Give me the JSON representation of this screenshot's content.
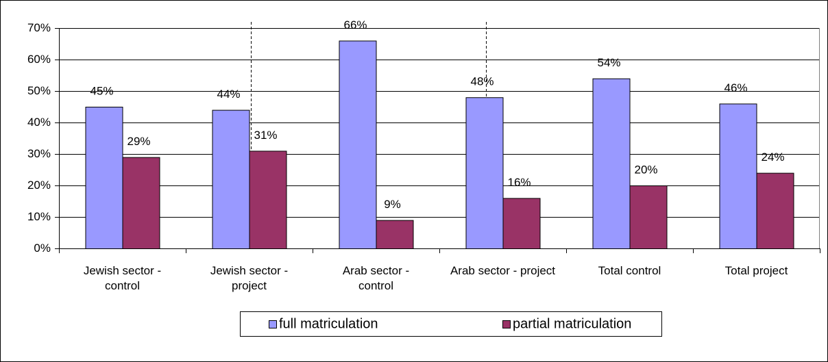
{
  "chart_data": {
    "type": "bar",
    "categories": [
      "Jewish sector - control",
      "Jewish sector - project",
      "Arab sector - control",
      "Arab sector - project",
      "Total control",
      "Total project"
    ],
    "series": [
      {
        "name": "full matriculation",
        "color": "#9999ff",
        "values": [
          45,
          44,
          66,
          48,
          54,
          46
        ],
        "value_labels": [
          "45%",
          "44%",
          "66%",
          "48%",
          "54%",
          "46%"
        ]
      },
      {
        "name": "partial matriculation",
        "color": "#993366",
        "values": [
          29,
          31,
          9,
          16,
          20,
          24
        ],
        "value_labels": [
          "29%",
          "31%",
          "9%",
          "16%",
          "20%",
          "24%"
        ]
      }
    ],
    "ylim": [
      0,
      70
    ],
    "yticks": [
      {
        "value": 0,
        "label": "0%"
      },
      {
        "value": 10,
        "label": "10%"
      },
      {
        "value": 20,
        "label": "20%"
      },
      {
        "value": 30,
        "label": "30%"
      },
      {
        "value": 40,
        "label": "40%"
      },
      {
        "value": 50,
        "label": "50%"
      },
      {
        "value": 60,
        "label": "60%"
      },
      {
        "value": 70,
        "label": "70%"
      }
    ],
    "grid": true,
    "legend": "bottom"
  }
}
